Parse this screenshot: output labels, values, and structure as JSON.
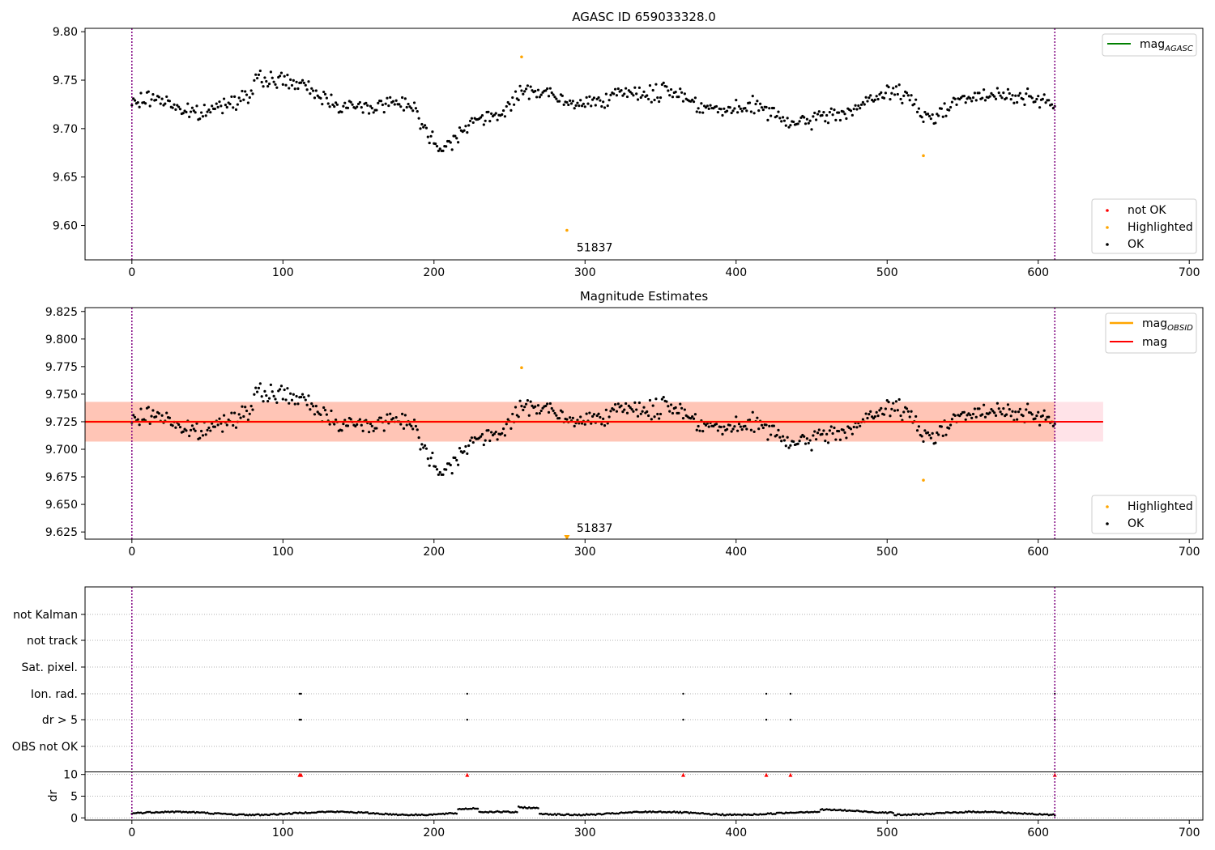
{
  "chart_data": [
    {
      "type": "scatter",
      "title": "AGASC ID 659033328.0",
      "xlabel": "",
      "ylabel": "",
      "xlim": [
        -31,
        709
      ],
      "ylim": [
        9.5645,
        9.8035
      ],
      "xticks": [
        0,
        100,
        200,
        300,
        400,
        500,
        600,
        700
      ],
      "yticks": [
        9.6,
        9.65,
        9.7,
        9.75,
        9.8
      ],
      "ytick_labels": [
        "9.60",
        "9.65",
        "9.70",
        "9.75",
        "9.80"
      ],
      "vlines": [
        0,
        611
      ],
      "legend_upper": [
        {
          "label": "magAGASC",
          "base": "mag",
          "sub": "AGASC",
          "color": "#008000"
        }
      ],
      "legend_lower": [
        {
          "label": "not OK",
          "color": "#ff0000"
        },
        {
          "label": "Highlighted",
          "color": "#ffa500"
        },
        {
          "label": "OK",
          "color": "#000000"
        }
      ],
      "highlighted_points": [
        [
          258,
          9.774
        ],
        [
          288,
          9.595
        ],
        [
          524,
          9.672
        ]
      ],
      "annotation": {
        "text": "51837",
        "x": 288,
        "y": 9.595
      },
      "series_ok_note": "611 OK observations, values between ~9.677 and ~9.770"
    },
    {
      "type": "scatter",
      "title": "Magnitude Estimates",
      "xlabel": "",
      "ylabel": "",
      "xlim": [
        -31,
        709
      ],
      "ylim": [
        9.6185,
        9.8285
      ],
      "xticks": [
        0,
        100,
        200,
        300,
        400,
        500,
        600,
        700
      ],
      "yticks": [
        9.625,
        9.65,
        9.675,
        9.7,
        9.725,
        9.75,
        9.775,
        9.8,
        9.825
      ],
      "ytick_labels": [
        "9.625",
        "9.650",
        "9.675",
        "9.700",
        "9.725",
        "9.750",
        "9.775",
        "9.800",
        "9.825"
      ],
      "vlines": [
        0,
        611
      ],
      "mag": 9.725,
      "band_obsid": [
        9.707,
        9.743
      ],
      "band_mag": [
        9.707,
        9.743
      ],
      "band_xrange": [
        -31,
        643
      ],
      "legend_upper": [
        {
          "label": "magOBSID",
          "base": "mag",
          "sub": "OBSID",
          "color": "#ffa500"
        },
        {
          "label": "mag",
          "base": "mag",
          "sub": "",
          "color": "#ff0000"
        }
      ],
      "legend_lower": [
        {
          "label": "Highlighted",
          "color": "#ffa500"
        },
        {
          "label": "OK",
          "color": "#000000"
        }
      ],
      "highlighted_points": [
        [
          258,
          9.774
        ],
        [
          524,
          9.672
        ]
      ],
      "clipped_marker": {
        "x": 288,
        "y": 9.6185
      },
      "annotation": {
        "text": "51837",
        "x": 288
      }
    },
    {
      "type": "scatter",
      "title": "",
      "xlim": [
        -31,
        709
      ],
      "flag_labels": [
        "not Kalman",
        "not track",
        "Sat. pixel.",
        "Ion. rad.",
        "dr > 5",
        "OBS not OK"
      ],
      "flag_points": {
        "Ion. rad.": [
          111,
          112,
          222,
          365,
          420,
          436,
          611
        ],
        "dr > 5": [
          111,
          112,
          222,
          365,
          420,
          436,
          611
        ]
      },
      "dr_ylabel": "dr",
      "dr_ylim": [
        -0.5,
        10.5
      ],
      "dr_yticks": [
        0,
        5,
        10
      ],
      "dr_clipped_points": [
        111,
        112,
        222,
        365,
        420,
        436,
        611
      ],
      "xticks": [
        0,
        100,
        200,
        300,
        400,
        500,
        600,
        700
      ],
      "vlines": [
        0,
        611
      ]
    }
  ]
}
